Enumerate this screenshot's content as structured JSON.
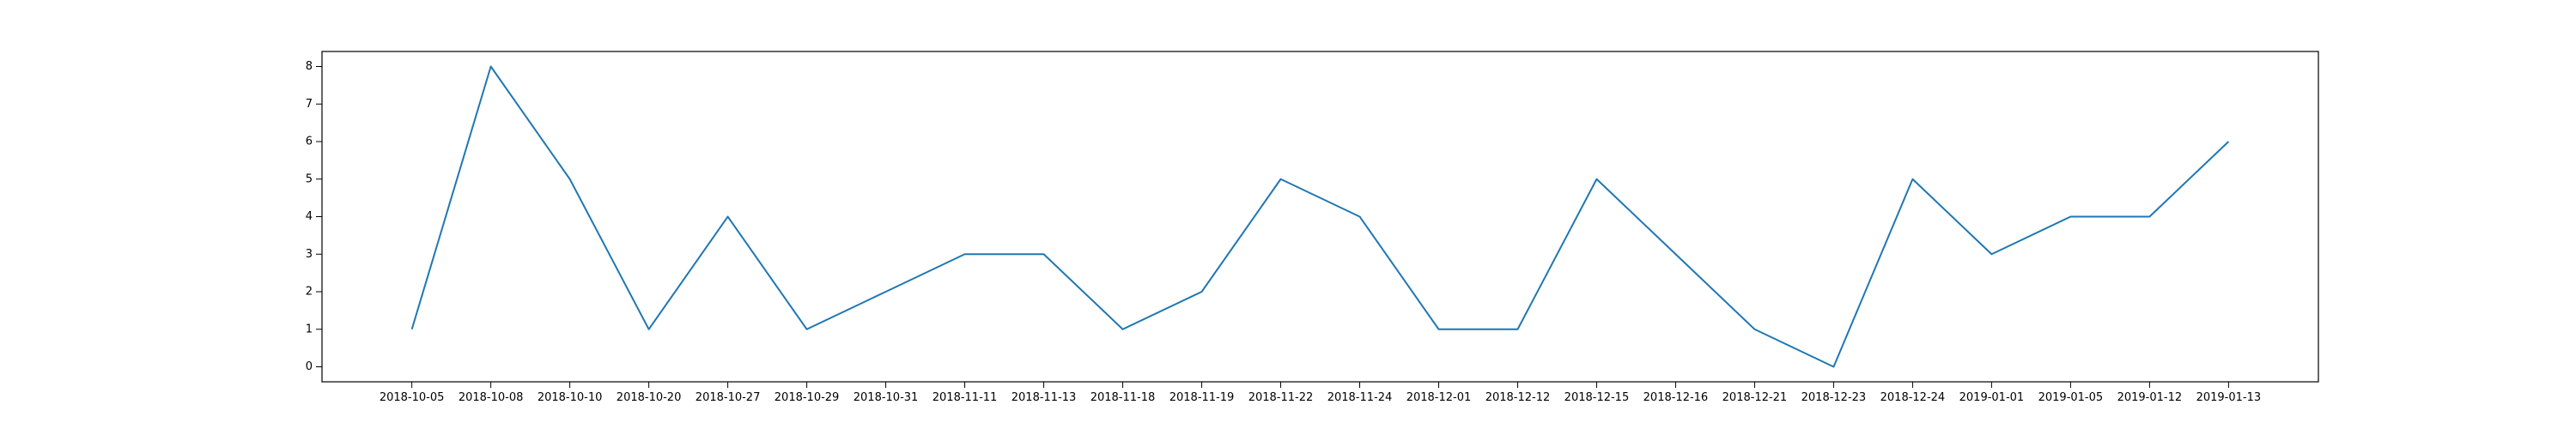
{
  "chart_data": {
    "type": "line",
    "title": "",
    "xlabel": "",
    "ylabel": "",
    "x": [
      "2018-10-05",
      "2018-10-08",
      "2018-10-10",
      "2018-10-20",
      "2018-10-27",
      "2018-10-29",
      "2018-10-31",
      "2018-11-11",
      "2018-11-13",
      "2018-11-18",
      "2018-11-19",
      "2018-11-22",
      "2018-11-24",
      "2018-12-01",
      "2018-12-12",
      "2018-12-15",
      "2018-12-16",
      "2018-12-21",
      "2018-12-23",
      "2018-12-24",
      "2019-01-01",
      "2019-01-05",
      "2019-01-12",
      "2019-01-13"
    ],
    "series": [
      {
        "values": [
          1,
          8,
          5,
          1,
          4,
          1,
          2,
          3,
          3,
          1,
          2,
          5,
          4,
          1,
          1,
          5,
          3,
          1,
          0,
          5,
          3,
          4,
          4,
          6
        ],
        "color": "#1f77b4"
      }
    ],
    "yticks": [
      0,
      1,
      2,
      3,
      4,
      5,
      6,
      7,
      8
    ],
    "ylim": [
      -0.4,
      8.4
    ],
    "grid": false,
    "legend": false
  }
}
